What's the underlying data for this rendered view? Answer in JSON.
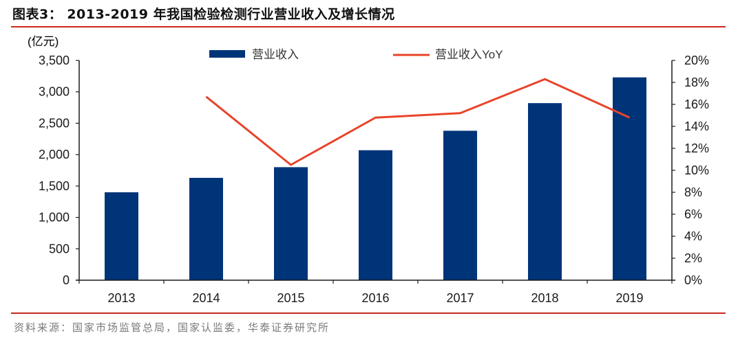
{
  "header": {
    "title": "图表3：  2013-2019 年我国检验检测行业营业收入及增长情况"
  },
  "footer": {
    "source": "资料来源：国家市场监管总局，国家认监委，华泰证券研究所"
  },
  "colors": {
    "bar": "#003478",
    "line": "#e8442a",
    "rule": "#c8281e",
    "axis": "#1a1a1a"
  },
  "chart_data": {
    "type": "bar+line",
    "title": "2013-2019 年我国检验检测行业营业收入及增长情况",
    "categories": [
      "2013",
      "2014",
      "2015",
      "2016",
      "2017",
      "2018",
      "2019"
    ],
    "series": [
      {
        "name": "营业收入",
        "type": "bar",
        "axis": "left",
        "values": [
          1400,
          1630,
          1800,
          2070,
          2380,
          2820,
          3230
        ]
      },
      {
        "name": "营业收入YoY",
        "type": "line",
        "axis": "right",
        "values": [
          null,
          16.7,
          10.5,
          14.8,
          15.2,
          18.3,
          14.8
        ]
      }
    ],
    "left_axis": {
      "label": "(亿元)",
      "ylim": [
        0,
        3500
      ],
      "ticks": [
        "0",
        "500",
        "1,000",
        "1,500",
        "2,000",
        "2,500",
        "3,000",
        "3,500"
      ]
    },
    "right_axis": {
      "label": "",
      "ylim": [
        0,
        20
      ],
      "ticks": [
        "0%",
        "2%",
        "4%",
        "6%",
        "8%",
        "10%",
        "12%",
        "14%",
        "16%",
        "18%",
        "20%"
      ]
    },
    "xlabel": "",
    "grid": false,
    "legend_position": "top"
  }
}
